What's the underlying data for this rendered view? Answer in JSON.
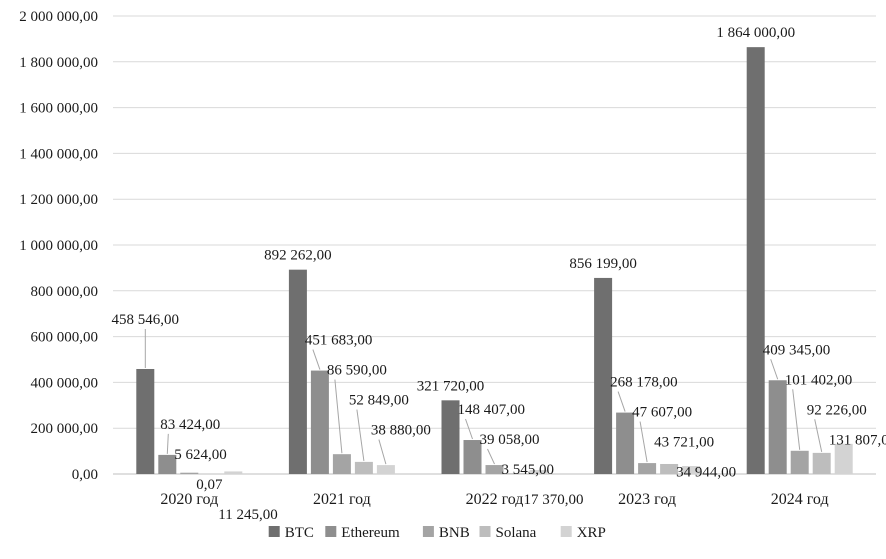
{
  "chart_data": {
    "type": "bar",
    "categories": [
      "2020 год",
      "2021 год",
      "2022 год",
      "2023 год",
      "2024 год"
    ],
    "series": [
      {
        "name": "BTC",
        "color": "#6f6f6f",
        "values": [
          458546,
          892262,
          321720,
          856199,
          1864000
        ],
        "labels": [
          "458 546,00",
          "892 262,00",
          "321 720,00",
          "856 199,00",
          "1 864 000,00"
        ]
      },
      {
        "name": "Ethereum",
        "color": "#8e8e8e",
        "values": [
          83424,
          451683,
          148407,
          268178,
          409345
        ],
        "labels": [
          "83 424,00",
          "451 683,00",
          "148 407,00",
          "268 178,00",
          "409 345,00"
        ]
      },
      {
        "name": "BNB",
        "color": "#a4a4a4",
        "values": [
          5624,
          86590,
          39058,
          47607,
          101402
        ],
        "labels": [
          "5 624,00",
          "86 590,00",
          "39 058,00",
          "47 607,00",
          "101 402,00"
        ]
      },
      {
        "name": "Solana",
        "color": "#bdbdbd",
        "values": [
          0.07,
          52849,
          3545,
          43721,
          92226
        ],
        "labels": [
          "0,07",
          "52 849,00",
          "3 545,00",
          "43 721,00",
          "92 226,00"
        ]
      },
      {
        "name": "XRP",
        "color": "#d3d3d3",
        "values": [
          11245,
          38880,
          17370,
          34944,
          131807
        ],
        "labels": [
          "11 245,00",
          "38 880,00",
          "17 370,00",
          "34 944,00",
          "131 807,00"
        ]
      }
    ],
    "yticks": [
      "0,00",
      "200 000,00",
      "400 000,00",
      "600 000,00",
      "800 000,00",
      "1 000 000,00",
      "1 200 000,00",
      "1 400 000,00",
      "1 600 000,00",
      "1 800 000,00",
      "2 000 000,00"
    ],
    "ylim": [
      0,
      2000000
    ],
    "grid": true,
    "legend_position": "bottom",
    "data_labels": true
  }
}
